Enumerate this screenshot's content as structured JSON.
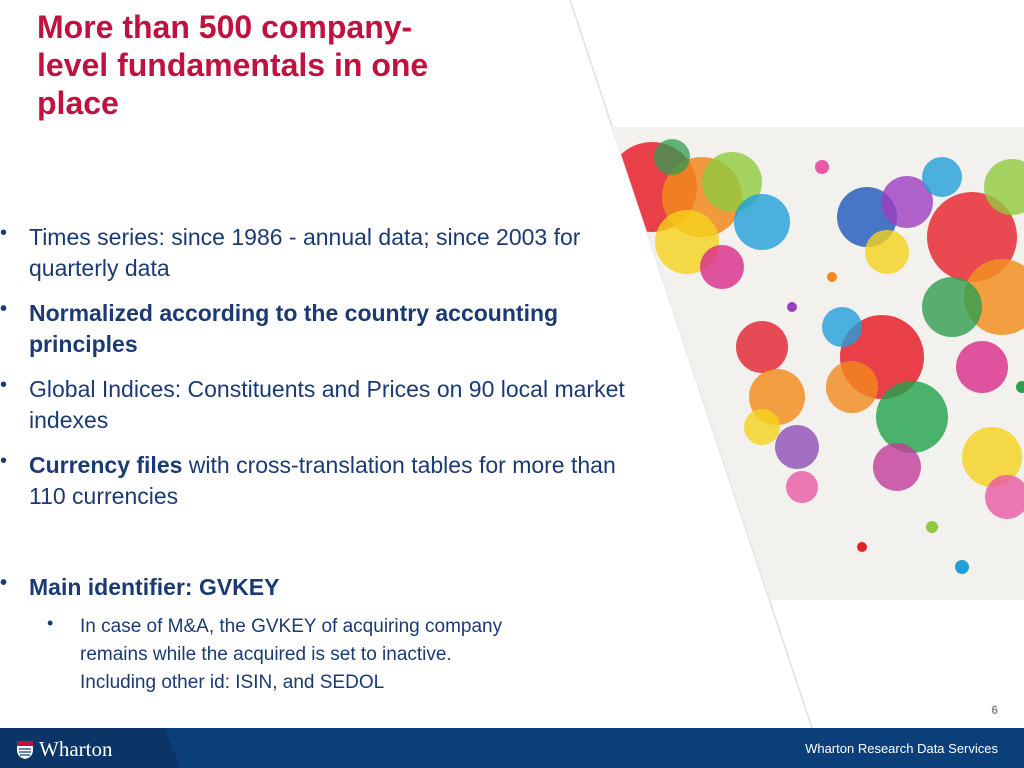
{
  "slide": {
    "title": "More than 500 company-level fundamentals in one place",
    "bullets": [
      {
        "text": "Times series: since 1986 - annual data; since 2003 for quarterly data"
      },
      {
        "text": "Normalized according to the country accounting principles"
      },
      {
        "text": "Global Indices: Constituents and Prices on 90 local market indexes"
      },
      {
        "bold_part": "Currency files",
        "rest": " with cross-translation tables for more than 110 currencies"
      }
    ],
    "main_identifier": "Main identifier: GVKEY",
    "sub_bullet_lines": [
      "In case of M&A, the GVKEY of acquiring company",
      "remains while the acquired is set to inactive.",
      "Including other id: ISIN, and SEDOL"
    ],
    "page_number": "6"
  },
  "footer": {
    "logo_text": "Wharton",
    "org_name": "Wharton Research Data Services"
  },
  "colors": {
    "title": "#c0123f",
    "body_text": "#1b3a73",
    "footer_bg": "#0b3f7a"
  },
  "icons": {
    "bullet": "•",
    "logo_shield": "penn-shield-icon",
    "map": "paint-splatter-world-map-image"
  }
}
